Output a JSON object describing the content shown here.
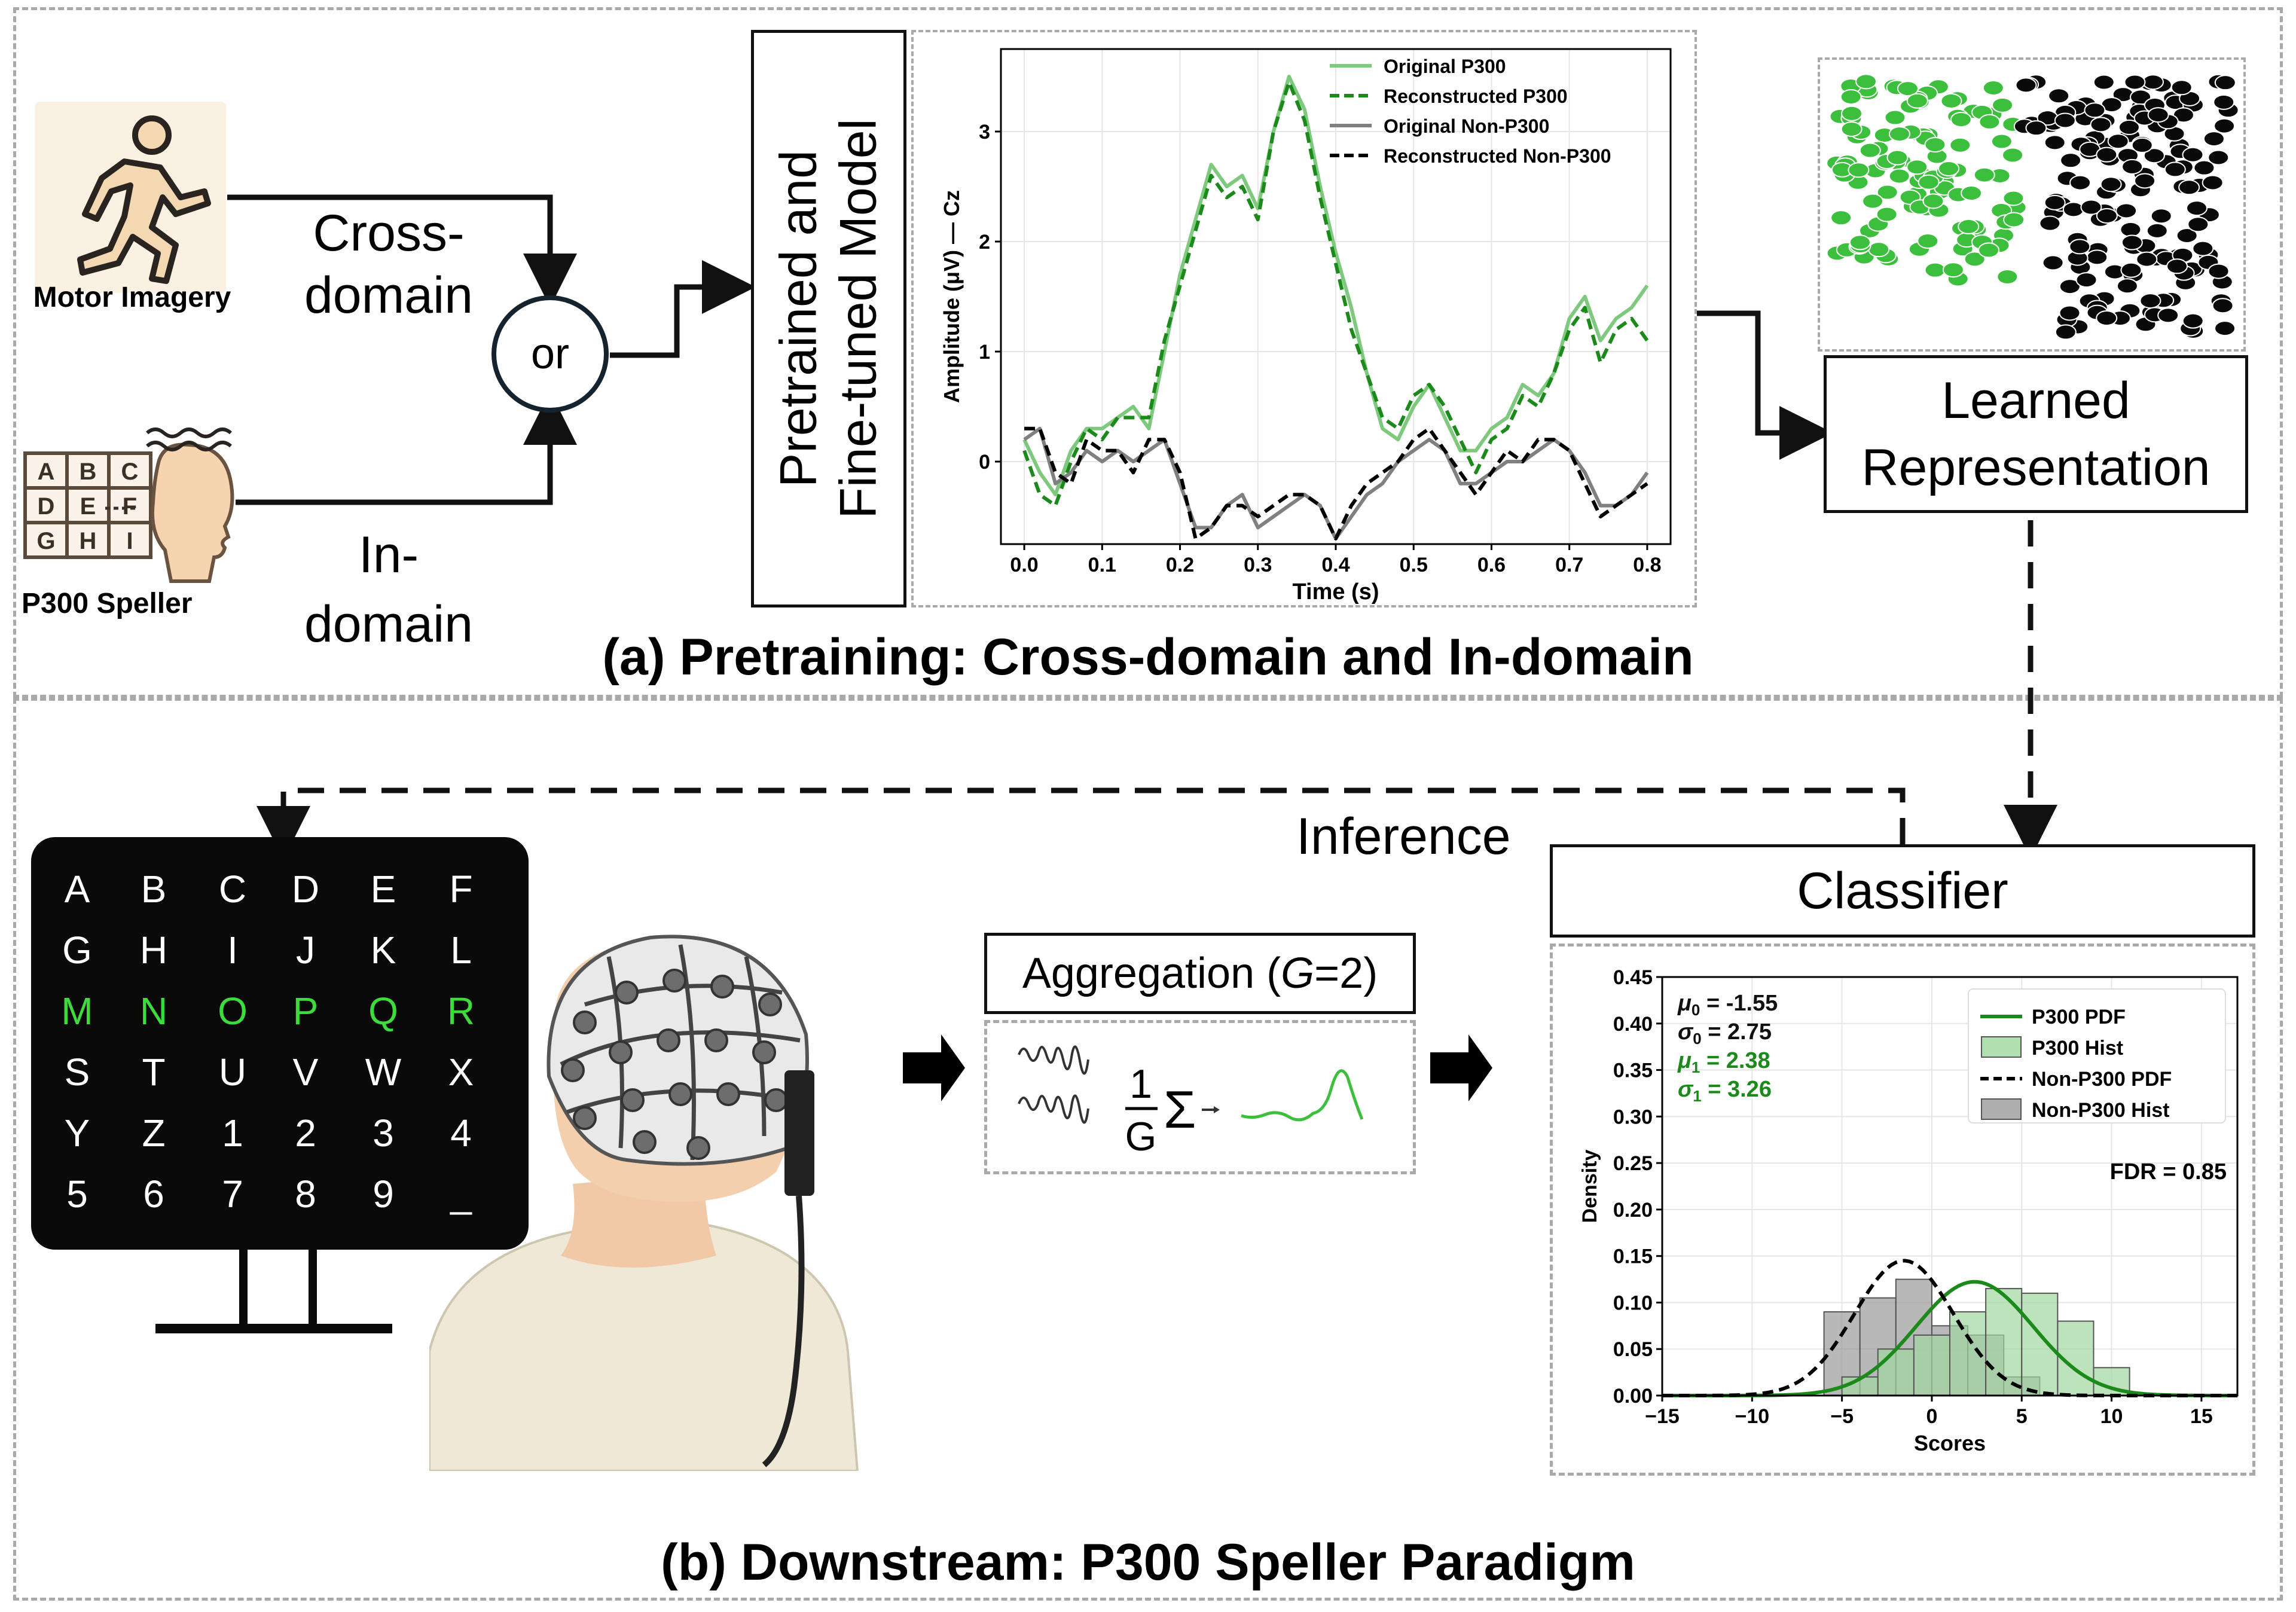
{
  "panel_a": {
    "caption": "(a) Pretraining: Cross-domain and In-domain",
    "source_motor": "Motor Imagery",
    "source_p300": "P300 Speller",
    "cross_domain_line1": "Cross-",
    "cross_domain_line2": "domain",
    "in_domain_line1": "In-",
    "in_domain_line2": "domain",
    "or_label": "or",
    "model_line1": "Pretrained and",
    "model_line2": "Fine-tuned Model",
    "learned_line1": "Learned",
    "learned_line2": "Representation",
    "mini_speller_letters": [
      "A",
      "B",
      "C",
      "D",
      "E",
      "F",
      "G",
      "H",
      "I"
    ]
  },
  "panel_b": {
    "caption": "(b) Downstream: P300 Speller Paradigm",
    "inference_label": "Inference",
    "classifier_label": "Classifier",
    "aggregation_label": "Aggregation (G=2)",
    "aggregation_prefix": "Aggregation (",
    "aggregation_var": "G",
    "aggregation_suffix": "=2)",
    "formula_num": "1",
    "formula_den": "G",
    "formula_sigma": "Σ",
    "speller_rows": [
      [
        "A",
        "B",
        "C",
        "D",
        "E",
        "F"
      ],
      [
        "G",
        "H",
        "I",
        "J",
        "K",
        "L"
      ],
      [
        "M",
        "N",
        "O",
        "P",
        "Q",
        "R"
      ],
      [
        "S",
        "T",
        "U",
        "V",
        "W",
        "X"
      ],
      [
        "Y",
        "Z",
        "1",
        "2",
        "3",
        "4"
      ],
      [
        "5",
        "6",
        "7",
        "8",
        "9",
        "_"
      ]
    ],
    "highlight_row": 2,
    "highlight_color": "#3ddc3d"
  },
  "chart_data": [
    {
      "type": "line",
      "xlabel": "Time (s)",
      "ylabel": "Amplitude (μV) — Cz",
      "xlim": [
        -0.03,
        0.83
      ],
      "ylim": [
        -0.75,
        3.75
      ],
      "xticks": [
        "0.0",
        "0.1",
        "0.2",
        "0.3",
        "0.4",
        "0.5",
        "0.6",
        "0.7",
        "0.8"
      ],
      "yticks": [
        "0",
        "1",
        "2",
        "3"
      ],
      "grid": true,
      "legend_position": "top-right",
      "series": [
        {
          "name": "Original P300",
          "color": "#7fc97f",
          "dash": "solid",
          "x": [
            0.0,
            0.02,
            0.04,
            0.06,
            0.08,
            0.1,
            0.12,
            0.14,
            0.16,
            0.18,
            0.2,
            0.22,
            0.24,
            0.26,
            0.28,
            0.3,
            0.32,
            0.34,
            0.36,
            0.38,
            0.4,
            0.42,
            0.44,
            0.46,
            0.48,
            0.5,
            0.52,
            0.54,
            0.56,
            0.58,
            0.6,
            0.62,
            0.64,
            0.66,
            0.68,
            0.7,
            0.72,
            0.74,
            0.76,
            0.78,
            0.8
          ],
          "y": [
            0.2,
            -0.1,
            -0.3,
            0.1,
            0.3,
            0.3,
            0.4,
            0.5,
            0.3,
            1.0,
            1.7,
            2.2,
            2.7,
            2.5,
            2.6,
            2.3,
            3.0,
            3.5,
            3.2,
            2.5,
            1.9,
            1.4,
            0.8,
            0.3,
            0.2,
            0.5,
            0.7,
            0.4,
            0.1,
            0.1,
            0.3,
            0.4,
            0.7,
            0.6,
            0.8,
            1.3,
            1.5,
            1.1,
            1.3,
            1.4,
            1.6
          ]
        },
        {
          "name": "Reconstructed P300",
          "color": "#1b8a1b",
          "dash": "dashed",
          "x": [
            0.0,
            0.02,
            0.04,
            0.06,
            0.08,
            0.1,
            0.12,
            0.14,
            0.16,
            0.18,
            0.2,
            0.22,
            0.24,
            0.26,
            0.28,
            0.3,
            0.32,
            0.34,
            0.36,
            0.38,
            0.4,
            0.42,
            0.44,
            0.46,
            0.48,
            0.5,
            0.52,
            0.54,
            0.56,
            0.58,
            0.6,
            0.62,
            0.64,
            0.66,
            0.68,
            0.7,
            0.72,
            0.74,
            0.76,
            0.78,
            0.8
          ],
          "y": [
            0.1,
            -0.3,
            -0.4,
            0.0,
            0.3,
            0.2,
            0.4,
            0.4,
            0.4,
            1.1,
            1.6,
            2.1,
            2.6,
            2.4,
            2.5,
            2.2,
            3.0,
            3.45,
            3.1,
            2.4,
            1.8,
            1.2,
            0.8,
            0.4,
            0.3,
            0.6,
            0.7,
            0.5,
            0.2,
            -0.1,
            0.2,
            0.3,
            0.6,
            0.5,
            0.8,
            1.2,
            1.4,
            0.9,
            1.2,
            1.3,
            1.1
          ]
        },
        {
          "name": "Original Non-P300",
          "color": "#808080",
          "dash": "solid",
          "x": [
            0.0,
            0.02,
            0.04,
            0.06,
            0.08,
            0.1,
            0.12,
            0.14,
            0.16,
            0.18,
            0.2,
            0.22,
            0.24,
            0.26,
            0.28,
            0.3,
            0.32,
            0.34,
            0.36,
            0.38,
            0.4,
            0.42,
            0.44,
            0.46,
            0.48,
            0.5,
            0.52,
            0.54,
            0.56,
            0.58,
            0.6,
            0.62,
            0.64,
            0.66,
            0.68,
            0.7,
            0.72,
            0.74,
            0.76,
            0.78,
            0.8
          ],
          "y": [
            0.2,
            0.3,
            -0.2,
            -0.1,
            0.1,
            0.0,
            0.1,
            0.0,
            0.1,
            0.2,
            -0.2,
            -0.6,
            -0.6,
            -0.4,
            -0.3,
            -0.6,
            -0.5,
            -0.4,
            -0.3,
            -0.4,
            -0.7,
            -0.5,
            -0.3,
            -0.2,
            0.0,
            0.1,
            0.2,
            0.1,
            -0.2,
            -0.2,
            -0.1,
            0.0,
            0.0,
            0.1,
            0.2,
            0.1,
            -0.1,
            -0.4,
            -0.4,
            -0.3,
            -0.1
          ]
        },
        {
          "name": "Reconstructed Non-P300",
          "color": "#000000",
          "dash": "dashed",
          "x": [
            0.0,
            0.02,
            0.04,
            0.06,
            0.08,
            0.1,
            0.12,
            0.14,
            0.16,
            0.18,
            0.2,
            0.22,
            0.24,
            0.26,
            0.28,
            0.3,
            0.32,
            0.34,
            0.36,
            0.38,
            0.4,
            0.42,
            0.44,
            0.46,
            0.48,
            0.5,
            0.52,
            0.54,
            0.56,
            0.58,
            0.6,
            0.62,
            0.64,
            0.66,
            0.68,
            0.7,
            0.72,
            0.74,
            0.76,
            0.78,
            0.8
          ],
          "y": [
            0.3,
            0.3,
            -0.1,
            -0.2,
            0.2,
            0.1,
            0.1,
            -0.1,
            0.2,
            0.2,
            -0.1,
            -0.7,
            -0.6,
            -0.4,
            -0.4,
            -0.5,
            -0.4,
            -0.3,
            -0.3,
            -0.4,
            -0.7,
            -0.4,
            -0.2,
            -0.1,
            0.0,
            0.2,
            0.3,
            0.1,
            -0.1,
            -0.3,
            -0.1,
            0.1,
            0.0,
            0.2,
            0.2,
            0.1,
            -0.2,
            -0.5,
            -0.4,
            -0.3,
            -0.2
          ]
        }
      ]
    },
    {
      "type": "scatter",
      "series": [
        {
          "name": "",
          "color": "#3cbf3c"
        },
        {
          "name": "",
          "color": "#0a0a0a"
        }
      ]
    },
    {
      "type": "bar",
      "xlabel": "Scores",
      "ylabel": "Density",
      "xlim": [
        -15,
        17
      ],
      "ylim": [
        0,
        0.45
      ],
      "xticks": [
        "−15",
        "−10",
        "−5",
        "0",
        "5",
        "10",
        "15"
      ],
      "yticks": [
        "0.00",
        "0.05",
        "0.10",
        "0.15",
        "0.20",
        "0.25",
        "0.30",
        "0.35",
        "0.40",
        "0.45"
      ],
      "grid": true,
      "legend_position": "top-right",
      "stats": {
        "mu0": "μ0 = -1.55",
        "sigma0": "σ0 = 2.75",
        "mu1": "μ1 = 2.38",
        "sigma1": "σ1 = 3.26",
        "mu0_name": "μ",
        "mu0_sub": "0",
        "mu0_val": " = -1.55",
        "sigma0_name": "σ",
        "sigma0_sub": "0",
        "sigma0_val": " = 2.75",
        "mu1_name": "μ",
        "mu1_sub": "1",
        "mu1_val": " = 2.38",
        "sigma1_name": "σ",
        "sigma1_sub": "1",
        "sigma1_val": " = 3.26"
      },
      "fdr": "FDR = 0.85",
      "series": [
        {
          "name": "P300 PDF",
          "kind": "pdf",
          "color": "#1b8a1b",
          "dash": "solid",
          "mu": 2.38,
          "sigma": 3.26
        },
        {
          "name": "P300 Hist",
          "kind": "hist",
          "color": "#9fd79f",
          "bin_edges": [
            -5,
            -3,
            -1,
            1,
            3,
            5,
            7,
            9,
            11
          ],
          "values": [
            0.02,
            0.05,
            0.065,
            0.09,
            0.115,
            0.11,
            0.08,
            0.03
          ]
        },
        {
          "name": "Non-P300 PDF",
          "kind": "pdf",
          "color": "#000000",
          "dash": "dashed",
          "mu": -1.55,
          "sigma": 2.75
        },
        {
          "name": "Non-P300 Hist",
          "kind": "hist",
          "color": "#9a9a9a",
          "bin_edges": [
            -6,
            -4,
            -2,
            0,
            2,
            4,
            6
          ],
          "values": [
            0.09,
            0.105,
            0.125,
            0.075,
            0.065,
            0.02
          ]
        }
      ]
    }
  ]
}
